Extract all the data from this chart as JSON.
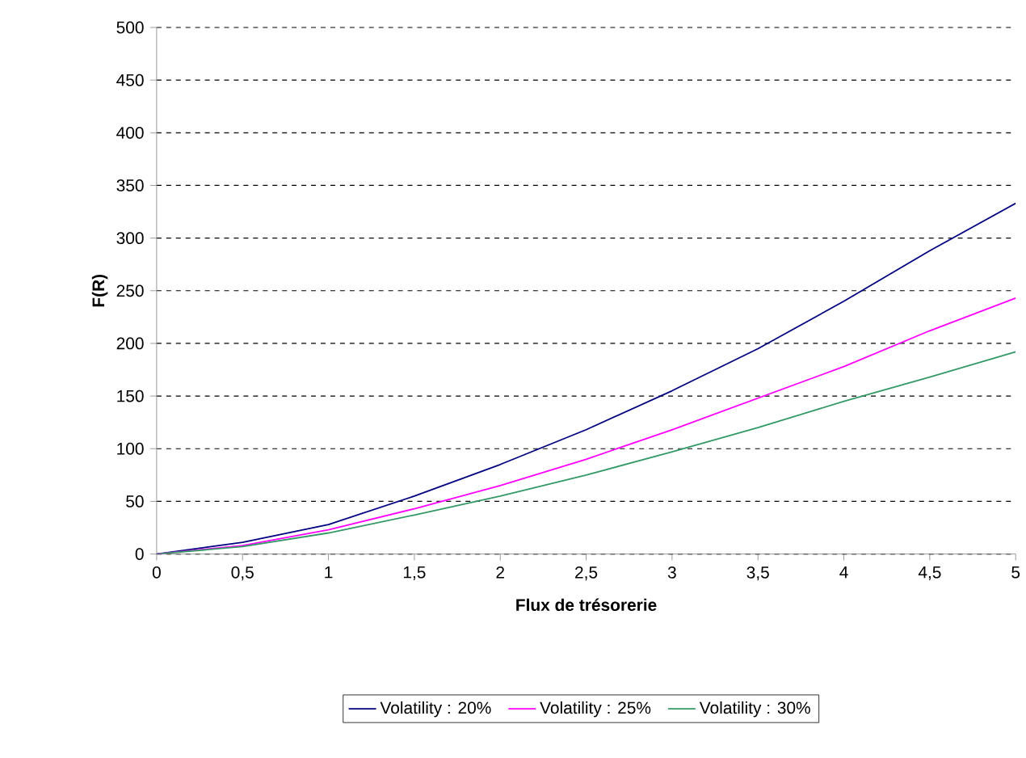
{
  "chart_data": {
    "type": "line",
    "xlabel": "Flux de trésorerie",
    "ylabel": "F(R)",
    "x": [
      0,
      0.5,
      1,
      1.5,
      2,
      2.5,
      3,
      3.5,
      4,
      4.5,
      5
    ],
    "series": [
      {
        "name": "Volatility : 20%",
        "color": "#000080",
        "values": [
          0,
          11,
          28,
          55,
          85,
          118,
          155,
          195,
          240,
          288,
          333
        ]
      },
      {
        "name": "Volatility : 25%",
        "color": "#ff00ff",
        "values": [
          0,
          8,
          23,
          43,
          65,
          90,
          118,
          148,
          178,
          212,
          243
        ]
      },
      {
        "name": "Volatility : 30%",
        "color": "#339966",
        "values": [
          0,
          7,
          20,
          37,
          55,
          75,
          97,
          120,
          145,
          168,
          192
        ]
      }
    ],
    "xlim": [
      0,
      5
    ],
    "ylim": [
      0,
      500
    ],
    "xticks": [
      0,
      {
        "value": 0.5,
        "label": "0,5"
      },
      1,
      {
        "value": 1.5,
        "label": "1,5"
      },
      2,
      {
        "value": 2.5,
        "label": "2,5"
      },
      3,
      {
        "value": 3.5,
        "label": "3,5"
      },
      4,
      {
        "value": 4.5,
        "label": "4,5"
      },
      5
    ],
    "yticks": [
      0,
      50,
      100,
      150,
      200,
      250,
      300,
      350,
      400,
      450,
      500
    ],
    "grid": "y",
    "legend": "bottom",
    "marker": "none",
    "line_style": "solid"
  }
}
